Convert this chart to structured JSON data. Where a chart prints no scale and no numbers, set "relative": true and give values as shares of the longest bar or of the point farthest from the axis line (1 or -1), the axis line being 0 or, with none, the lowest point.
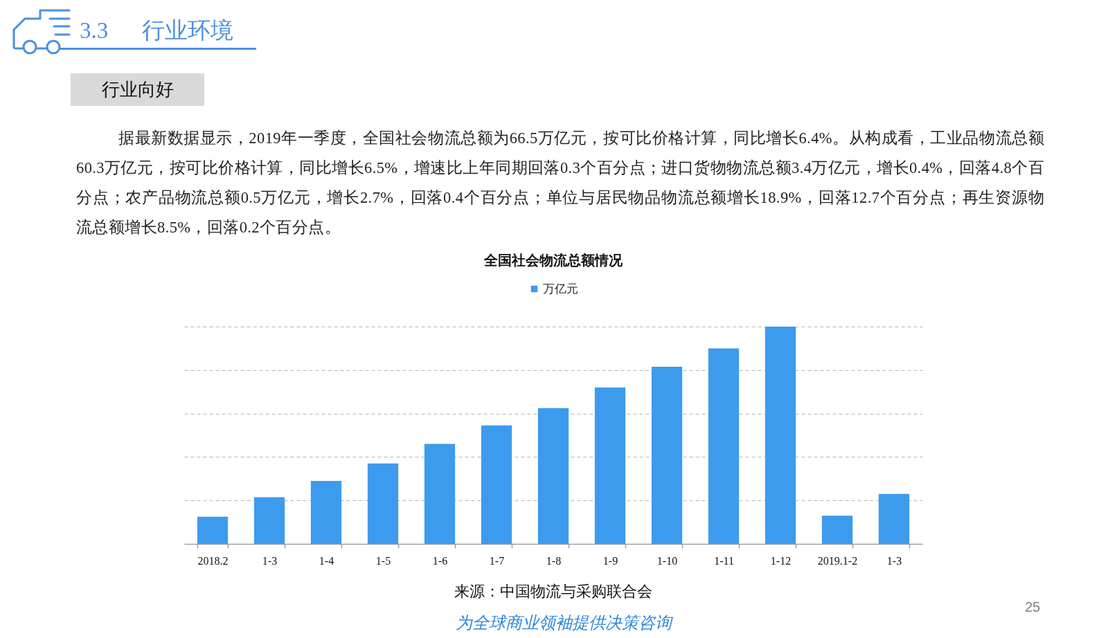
{
  "chart_data": {
    "type": "bar",
    "title": "全国社会物流总额情况",
    "categories": [
      "2018.2",
      "1-3",
      "1-4",
      "1-5",
      "1-6",
      "1-7",
      "1-8",
      "1-9",
      "1-10",
      "1-11",
      "1-12",
      "2019.1-2",
      "1-3"
    ],
    "series": [
      {
        "name": "万亿元",
        "color": "#3d9bee",
        "values": [
          0.125,
          0.215,
          0.29,
          0.37,
          0.46,
          0.545,
          0.625,
          0.72,
          0.815,
          0.9,
          1,
          0.13,
          0.23
        ]
      }
    ],
    "relative": true,
    "grid": "y",
    "legend": "top",
    "annotations": [
      "3.3 行业环境",
      "行业向好",
      "据最新数据显示，2019年一季度，全国社会物流总额为66.5万亿元，按可比价格计算，同比增长6.4%。从构成看，工业品物流总额60.3万亿元，按可比价格计算，同比增长6.5%，增速比上年同期回落0.3个百分点；进口货物物流总额3.4万亿元，增长0.4%，回落4.8个百分点；农产品物流总额0.5万亿元，增长2.7%，回落0.4个百分点；单位与居民物品物流总额增长18.9%，回落12.7个百分点；再生资源物流总额增长8.5%，回落0.2个百分点。",
      "来源：中国物流与采购联合会",
      "为全球商业领袖提供决策咨询",
      "25"
    ]
  }
}
